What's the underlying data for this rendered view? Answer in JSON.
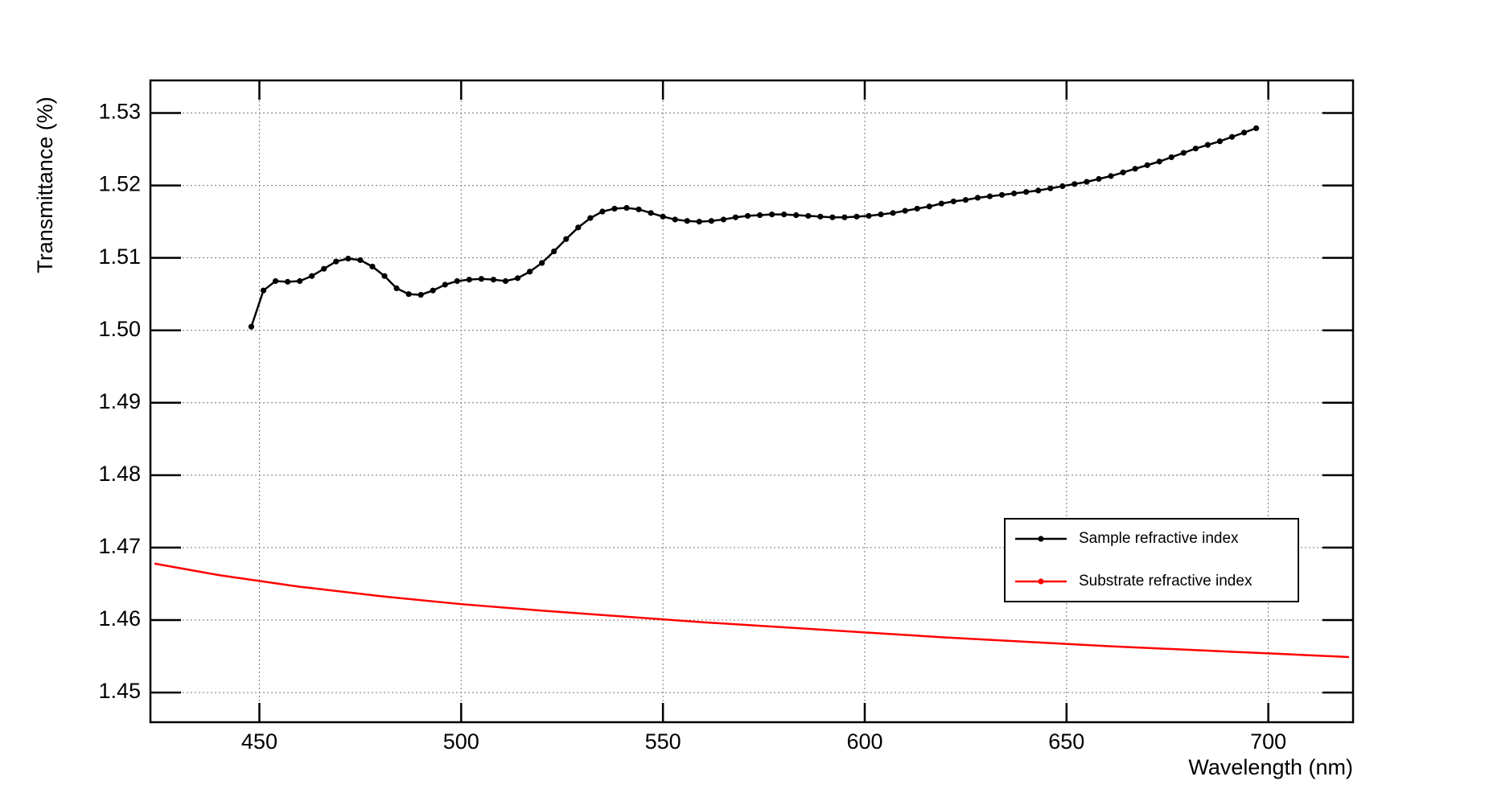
{
  "chart_data": {
    "type": "line",
    "xlabel": "Wavelength (nm)",
    "ylabel": "Transmittance (%)",
    "xlim": [
      423,
      721
    ],
    "ylim": [
      1.4459,
      1.5345
    ],
    "xticks": [
      450,
      500,
      550,
      600,
      650,
      700
    ],
    "yticks": [
      1.45,
      1.46,
      1.47,
      1.48,
      1.49,
      {
        "value": 1.5,
        "label": "1.50"
      },
      1.51,
      1.52,
      1.53
    ],
    "grid": true,
    "legend": "lower right",
    "series": [
      {
        "name": "Sample refractive index",
        "color": "#000000",
        "markers": true,
        "x": [
          448,
          451,
          454,
          457,
          460,
          463,
          466,
          469,
          472,
          475,
          478,
          481,
          484,
          487,
          490,
          493,
          496,
          499,
          502,
          505,
          508,
          511,
          514,
          517,
          520,
          523,
          526,
          529,
          532,
          535,
          538,
          541,
          544,
          547,
          550,
          553,
          556,
          559,
          562,
          565,
          568,
          571,
          574,
          577,
          580,
          583,
          586,
          589,
          592,
          595,
          598,
          601,
          604,
          607,
          610,
          613,
          616,
          619,
          622,
          625,
          628,
          631,
          634,
          637,
          640,
          643,
          646,
          649,
          652,
          655,
          658,
          661,
          664,
          667,
          670,
          673,
          676,
          679,
          682,
          685,
          688,
          691,
          694,
          697
        ],
        "values": [
          1.5005,
          1.5055,
          1.5068,
          1.5067,
          1.5068,
          1.5075,
          1.5085,
          1.5095,
          1.5099,
          1.5097,
          1.5088,
          1.5075,
          1.5058,
          1.505,
          1.5049,
          1.5055,
          1.5063,
          1.5068,
          1.507,
          1.5071,
          1.507,
          1.5068,
          1.5072,
          1.5081,
          1.5093,
          1.5109,
          1.5126,
          1.5142,
          1.5155,
          1.5164,
          1.5168,
          1.5169,
          1.5167,
          1.5162,
          1.5157,
          1.5153,
          1.5151,
          1.515,
          1.5151,
          1.5153,
          1.5156,
          1.5158,
          1.5159,
          1.516,
          1.516,
          1.5159,
          1.5158,
          1.5157,
          1.5156,
          1.5156,
          1.5157,
          1.5158,
          1.516,
          1.5162,
          1.5165,
          1.5168,
          1.5171,
          1.5175,
          1.5178,
          1.518,
          1.5183,
          1.5185,
          1.5187,
          1.5189,
          1.5191,
          1.5193,
          1.5196,
          1.5199,
          1.5202,
          1.5205,
          1.5209,
          1.5213,
          1.5218,
          1.5223,
          1.5228,
          1.5233,
          1.5239,
          1.5245,
          1.5251,
          1.5256,
          1.5261,
          1.5267,
          1.5273,
          1.5279
        ]
      },
      {
        "name": "Substrate refractive index",
        "color": "#ff0000",
        "markers": false,
        "x": [
          424,
          440,
          460,
          480,
          500,
          520,
          540,
          560,
          580,
          600,
          620,
          640,
          660,
          680,
          700,
          720
        ],
        "values": [
          1.4678,
          1.4662,
          1.4646,
          1.4633,
          1.4622,
          1.4613,
          1.4605,
          1.4597,
          1.459,
          1.4583,
          1.4576,
          1.457,
          1.4564,
          1.4559,
          1.4554,
          1.4549
        ]
      }
    ]
  }
}
